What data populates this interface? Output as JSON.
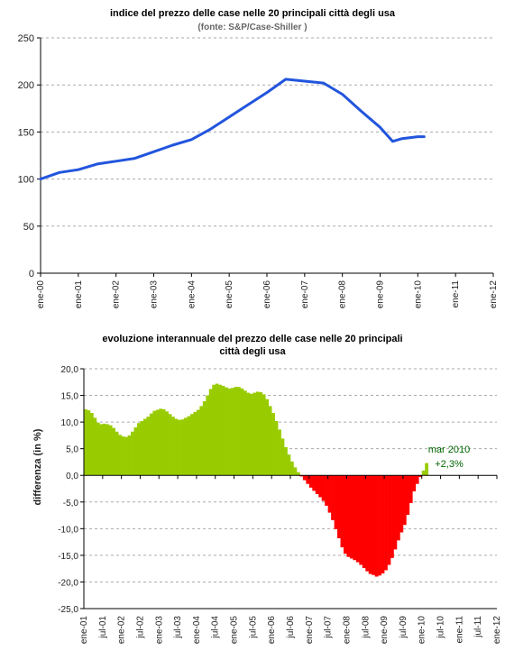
{
  "chart_data": [
    {
      "type": "line",
      "title": "indice del prezzo delle case nelle 20 principali città degli usa",
      "subtitle": "(fonte:  S&P/Case-Shiller )",
      "ylim": [
        0,
        250
      ],
      "yticks": [
        "0",
        "50",
        "100",
        "150",
        "200",
        "250"
      ],
      "xlim": [
        "2000-01",
        "2012-01"
      ],
      "xtick_labels": [
        "ene-00",
        "ene-01",
        "ene-02",
        "ene-03",
        "ene-04",
        "ene-05",
        "ene-06",
        "ene-07",
        "ene-08",
        "ene-09",
        "ene-10",
        "ene-11",
        "ene-12"
      ],
      "grid": true,
      "line_color": "#2255dd",
      "series": [
        {
          "points": [
            [
              "2000-01",
              100
            ],
            [
              "2000-07",
              107
            ],
            [
              "2001-01",
              110
            ],
            [
              "2001-07",
              116
            ],
            [
              "2002-01",
              119
            ],
            [
              "2002-07",
              122
            ],
            [
              "2003-01",
              129
            ],
            [
              "2003-07",
              136
            ],
            [
              "2004-01",
              142
            ],
            [
              "2004-07",
              153
            ],
            [
              "2005-01",
              166
            ],
            [
              "2005-07",
              179
            ],
            [
              "2006-01",
              192
            ],
            [
              "2006-07",
              206
            ],
            [
              "2007-01",
              204
            ],
            [
              "2007-07",
              202
            ],
            [
              "2008-01",
              190
            ],
            [
              "2008-07",
              172
            ],
            [
              "2009-01",
              155
            ],
            [
              "2009-05",
              140
            ],
            [
              "2009-08",
              143
            ],
            [
              "2010-01",
              145
            ],
            [
              "2010-03",
              145
            ]
          ]
        }
      ]
    },
    {
      "type": "bar",
      "title_lines": [
        "evoluzione interannuale del prezzo delle case nelle 20 principali",
        "città degli usa"
      ],
      "ylabel": "differenza (in %)",
      "ylim": [
        -25,
        20
      ],
      "yticks": [
        "20,0",
        "15,0",
        "10,0",
        "5,0",
        "0,0",
        "-5,0",
        "-10,0",
        "-15,0",
        "-20,0",
        "-25,0"
      ],
      "xlim": [
        "2001-01",
        "2012-01"
      ],
      "xtick_labels": [
        "ene-01",
        "jul-01",
        "ene-02",
        "jul-02",
        "ene-03",
        "jul-03",
        "ene-04",
        "jul-04",
        "ene-05",
        "jul-05",
        "ene-06",
        "jul-06",
        "ene-07",
        "jul-07",
        "ene-08",
        "jul-08",
        "ene-09",
        "jul-09",
        "ene-10",
        "jul-10",
        "ene-11",
        "jul-11",
        "ene-12"
      ],
      "grid": true,
      "positive_color": "#99cc00",
      "negative_color": "#ff0000",
      "start": "2001-01",
      "values": [
        12.4,
        12.2,
        11.7,
        10.8,
        9.9,
        9.6,
        9.7,
        9.6,
        9.4,
        8.9,
        8.2,
        7.6,
        7.3,
        7.2,
        7.5,
        8.2,
        9.0,
        9.8,
        10.2,
        10.6,
        11.0,
        11.6,
        12.1,
        12.3,
        12.5,
        12.4,
        12.0,
        11.5,
        11.0,
        10.6,
        10.4,
        10.5,
        10.8,
        11.1,
        11.5,
        11.9,
        12.3,
        13.0,
        13.9,
        15.0,
        16.2,
        17.0,
        17.2,
        17.0,
        16.8,
        16.5,
        16.3,
        16.4,
        16.6,
        16.6,
        16.3,
        15.9,
        15.5,
        15.3,
        15.5,
        15.7,
        15.6,
        15.2,
        14.3,
        13.0,
        11.7,
        10.2,
        8.6,
        6.9,
        5.3,
        3.9,
        2.6,
        1.5,
        0.6,
        -0.2,
        -0.9,
        -1.6,
        -2.3,
        -2.9,
        -3.5,
        -4.1,
        -4.8,
        -5.7,
        -7.0,
        -8.4,
        -10.1,
        -11.8,
        -13.5,
        -14.7,
        -15.3,
        -15.6,
        -15.9,
        -16.3,
        -16.8,
        -17.4,
        -18.0,
        -18.5,
        -18.7,
        -19.0,
        -18.8,
        -18.4,
        -17.8,
        -16.8,
        -15.5,
        -13.9,
        -12.2,
        -10.7,
        -9.3,
        -7.4,
        -5.2,
        -3.0,
        -1.6,
        -0.3,
        0.9,
        2.3
      ],
      "annotation": {
        "lines": [
          "mar 2010",
          "+2,3%"
        ],
        "color": "#006600"
      }
    }
  ]
}
